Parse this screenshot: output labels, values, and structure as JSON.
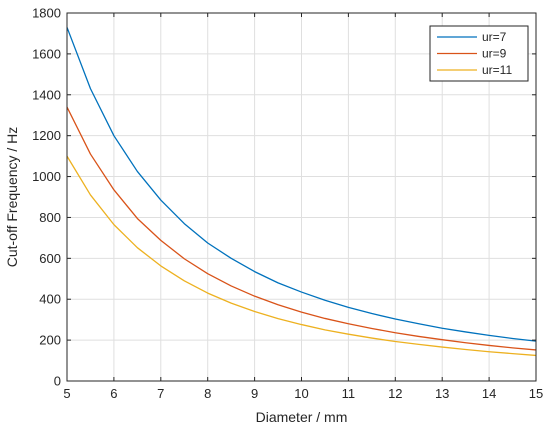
{
  "chart_data": {
    "type": "line",
    "title": "",
    "xlabel": "Diameter / mm",
    "ylabel": "Cut-off Frequency / Hz",
    "xlim": [
      5,
      15
    ],
    "ylim": [
      0,
      1800
    ],
    "xticks": [
      5,
      6,
      7,
      8,
      9,
      10,
      11,
      12,
      13,
      14,
      15
    ],
    "yticks": [
      0,
      200,
      400,
      600,
      800,
      1000,
      1200,
      1400,
      1600,
      1800
    ],
    "grid": true,
    "legend_position": "top-right",
    "series": [
      {
        "name": "ur=7",
        "color": "#0072BD",
        "x": [
          5,
          5.5,
          6,
          6.5,
          7,
          7.5,
          8,
          8.5,
          9,
          9.5,
          10,
          10.5,
          11,
          11.5,
          12,
          12.5,
          13,
          13.5,
          14,
          14.5,
          15
        ],
        "y": [
          1730,
          1430,
          1200,
          1025,
          885,
          770,
          675,
          600,
          535,
          480,
          435,
          395,
          360,
          330,
          303,
          280,
          258,
          240,
          223,
          208,
          195
        ]
      },
      {
        "name": "ur=9",
        "color": "#D95319",
        "x": [
          5,
          5.5,
          6,
          6.5,
          7,
          7.5,
          8,
          8.5,
          9,
          9.5,
          10,
          10.5,
          11,
          11.5,
          12,
          12.5,
          13,
          13.5,
          14,
          14.5,
          15
        ],
        "y": [
          1340,
          1110,
          935,
          795,
          688,
          598,
          525,
          465,
          415,
          373,
          337,
          306,
          280,
          257,
          236,
          218,
          202,
          187,
          174,
          162,
          152
        ]
      },
      {
        "name": "ur=11",
        "color": "#EDB120",
        "x": [
          5,
          5.5,
          6,
          6.5,
          7,
          7.5,
          8,
          8.5,
          9,
          9.5,
          10,
          10.5,
          11,
          11.5,
          12,
          12.5,
          13,
          13.5,
          14,
          14.5,
          15
        ],
        "y": [
          1100,
          910,
          765,
          652,
          563,
          490,
          430,
          381,
          340,
          305,
          276,
          250,
          229,
          210,
          193,
          179,
          166,
          154,
          143,
          134,
          125
        ]
      }
    ]
  }
}
